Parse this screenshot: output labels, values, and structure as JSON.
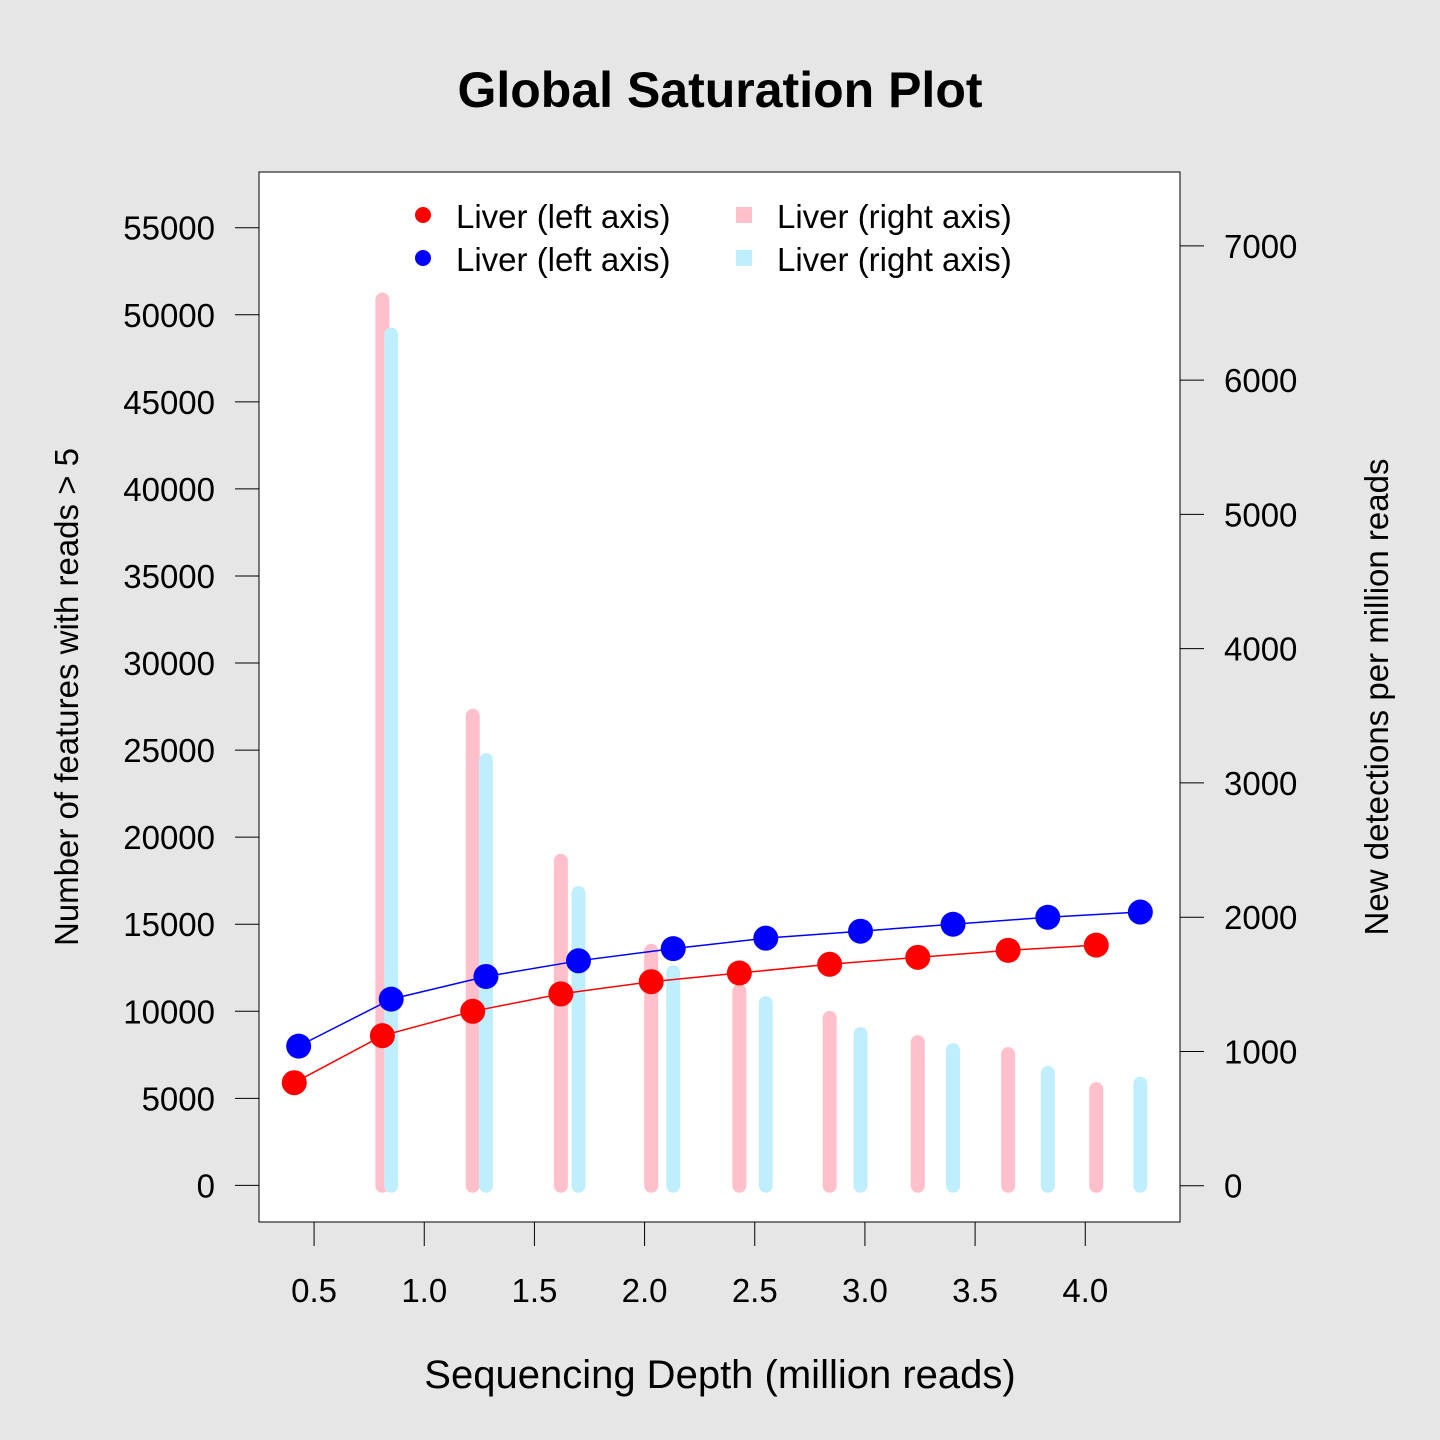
{
  "chart_data": {
    "type": "line",
    "title": "Global Saturation Plot",
    "xlabel": "Sequencing Depth (million reads)",
    "ylabel_left": "Number of features with reads > 5",
    "ylabel_right": "New detections per million reads",
    "xlim": [
      0.25,
      4.43
    ],
    "ylim_left": [
      -2100,
      58200
    ],
    "ylim_right": [
      -270,
      7550
    ],
    "x_ticks": [
      "0.5",
      "1.0",
      "1.5",
      "2.0",
      "2.5",
      "3.0",
      "3.5",
      "4.0"
    ],
    "y_left_ticks": [
      "0",
      "5000",
      "10000",
      "15000",
      "20000",
      "25000",
      "30000",
      "35000",
      "40000",
      "45000",
      "50000",
      "55000"
    ],
    "y_right_ticks": [
      "0",
      "1000",
      "2000",
      "3000",
      "4000",
      "5000",
      "6000",
      "7000"
    ],
    "grid": false,
    "legend_position": "top",
    "legend": [
      {
        "label": "Liver (left axis)",
        "symbol": "dot",
        "color": "#ff0000"
      },
      {
        "label": "Liver (left axis)",
        "symbol": "dot",
        "color": "#0000ff"
      },
      {
        "label": "Liver (right axis)",
        "symbol": "square",
        "color": "#ffc0cb"
      },
      {
        "label": "Liver (right axis)",
        "symbol": "square",
        "color": "#bfefff"
      }
    ],
    "series": [
      {
        "axis": "left",
        "kind": "line",
        "color": "#ff0000",
        "x": [
          0.41,
          0.81,
          1.22,
          1.62,
          2.03,
          2.43,
          2.84,
          3.24,
          3.65,
          4.05
        ],
        "values": [
          5900,
          8600,
          10000,
          11000,
          11700,
          12200,
          12700,
          13100,
          13500,
          13800
        ]
      },
      {
        "axis": "left",
        "kind": "line",
        "color": "#0000ff",
        "x": [
          0.43,
          0.85,
          1.28,
          1.7,
          2.13,
          2.55,
          2.98,
          3.4,
          3.83,
          4.25
        ],
        "values": [
          8000,
          10700,
          12000,
          12900,
          13600,
          14200,
          14600,
          15000,
          15400,
          15700
        ]
      },
      {
        "axis": "right",
        "kind": "bar",
        "color": "#ffc0cb",
        "x": [
          0.81,
          1.22,
          1.62,
          2.03,
          2.43,
          2.84,
          3.24,
          3.65,
          4.05
        ],
        "values": [
          6600,
          3500,
          2420,
          1750,
          1450,
          1250,
          1070,
          980,
          720
        ]
      },
      {
        "axis": "right",
        "kind": "bar",
        "color": "#bfefff",
        "x": [
          0.85,
          1.28,
          1.7,
          2.13,
          2.55,
          2.98,
          3.4,
          3.83,
          4.25
        ],
        "values": [
          6340,
          3170,
          2180,
          1590,
          1360,
          1130,
          1010,
          840,
          760
        ]
      }
    ]
  }
}
